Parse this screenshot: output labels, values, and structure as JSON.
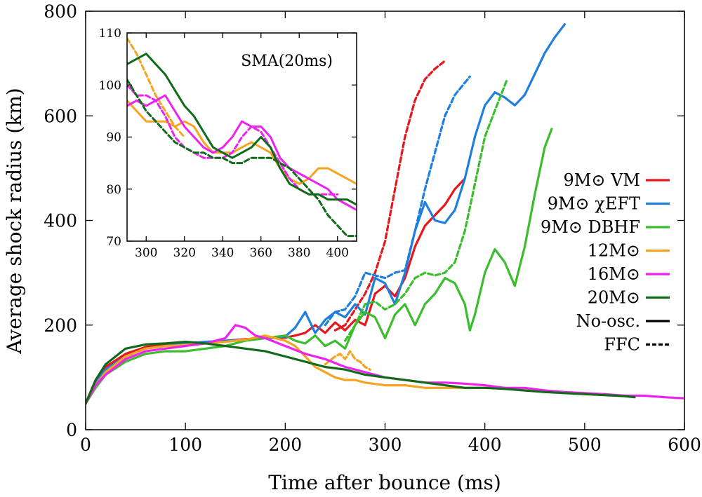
{
  "chart_data": [
    {
      "type": "line",
      "title": "",
      "xlabel": "Time after bounce (ms)",
      "ylabel": "Average shock radius (km)",
      "xlim": [
        0,
        600
      ],
      "ylim": [
        0,
        800
      ],
      "xticks": [
        0,
        100,
        200,
        300,
        400,
        500,
        600
      ],
      "yticks": [
        0,
        200,
        400,
        600,
        800
      ],
      "legend_position": "right",
      "legend": [
        {
          "label": "9M⊙ VM",
          "color": "#e8161b",
          "style": "solid"
        },
        {
          "label": "9M⊙ χEFT",
          "color": "#1e7fe0",
          "style": "solid"
        },
        {
          "label": "9M⊙ DBHF",
          "color": "#3cbd2e",
          "style": "solid"
        },
        {
          "label": "12M⊙",
          "color": "#f5a320",
          "style": "solid"
        },
        {
          "label": "16M⊙",
          "color": "#ee22ee",
          "style": "solid"
        },
        {
          "label": "20M⊙",
          "color": "#0f6b18",
          "style": "solid"
        },
        {
          "label": "No-osc.",
          "color": "#000000",
          "style": "solid"
        },
        {
          "label": "FFC",
          "color": "#000000",
          "style": "dashed"
        }
      ],
      "series": [
        {
          "name": "9M⊙ VM",
          "color": "#e8161b",
          "style": "solid",
          "x": [
            0,
            10,
            20,
            40,
            60,
            80,
            100,
            120,
            140,
            160,
            180,
            200,
            210,
            220,
            230,
            240,
            250,
            260,
            270,
            280,
            290,
            300,
            310,
            320,
            330,
            340,
            350,
            360,
            370,
            380
          ],
          "y": [
            50,
            95,
            120,
            145,
            158,
            163,
            165,
            167,
            170,
            173,
            175,
            176,
            180,
            185,
            200,
            185,
            205,
            190,
            210,
            200,
            260,
            275,
            255,
            290,
            350,
            390,
            410,
            430,
            460,
            480
          ]
        },
        {
          "name": "9M⊙ VM FFC",
          "color": "#e8161b",
          "style": "dashed",
          "x": [
            250,
            260,
            270,
            280,
            290,
            300,
            310,
            320,
            330,
            340,
            350,
            360
          ],
          "y": [
            190,
            200,
            230,
            260,
            300,
            360,
            460,
            560,
            630,
            670,
            690,
            705
          ]
        },
        {
          "name": "9M⊙ χEFT",
          "color": "#1e7fe0",
          "style": "solid",
          "x": [
            0,
            10,
            20,
            40,
            60,
            80,
            100,
            120,
            140,
            160,
            180,
            200,
            210,
            220,
            230,
            240,
            250,
            260,
            270,
            280,
            290,
            300,
            310,
            320,
            330,
            340,
            350,
            360,
            370,
            380,
            390,
            400,
            410,
            420,
            430,
            440,
            450,
            460,
            470,
            480
          ],
          "y": [
            50,
            90,
            115,
            140,
            155,
            160,
            165,
            168,
            170,
            172,
            175,
            178,
            195,
            225,
            185,
            210,
            225,
            215,
            240,
            220,
            290,
            280,
            240,
            300,
            380,
            435,
            400,
            395,
            420,
            480,
            560,
            620,
            645,
            635,
            620,
            640,
            680,
            720,
            750,
            775
          ]
        },
        {
          "name": "9M⊙ χEFT FFC",
          "color": "#1e7fe0",
          "style": "dashed",
          "x": [
            240,
            250,
            260,
            270,
            280,
            290,
            300,
            310,
            320,
            330,
            340,
            350,
            360,
            370,
            385
          ],
          "y": [
            200,
            225,
            230,
            255,
            300,
            295,
            290,
            300,
            305,
            380,
            460,
            530,
            600,
            640,
            675
          ]
        },
        {
          "name": "9M⊙ DBHF",
          "color": "#3cbd2e",
          "style": "solid",
          "x": [
            0,
            10,
            20,
            40,
            60,
            80,
            100,
            120,
            140,
            160,
            180,
            200,
            210,
            220,
            230,
            240,
            250,
            260,
            270,
            280,
            290,
            300,
            310,
            320,
            330,
            340,
            350,
            360,
            370,
            380,
            385,
            390,
            400,
            410,
            420,
            430,
            440,
            450,
            460,
            467
          ],
          "y": [
            50,
            80,
            105,
            130,
            145,
            150,
            150,
            155,
            160,
            170,
            175,
            180,
            170,
            165,
            180,
            160,
            170,
            155,
            200,
            225,
            215,
            175,
            220,
            240,
            200,
            240,
            260,
            290,
            280,
            240,
            190,
            220,
            300,
            345,
            320,
            275,
            350,
            450,
            540,
            575
          ]
        },
        {
          "name": "9M⊙ DBHF FFC",
          "color": "#3cbd2e",
          "style": "dashed",
          "x": [
            260,
            270,
            280,
            290,
            300,
            310,
            320,
            330,
            340,
            350,
            360,
            370,
            380,
            390,
            400,
            410,
            422
          ],
          "y": [
            170,
            200,
            240,
            245,
            230,
            240,
            260,
            290,
            300,
            295,
            300,
            320,
            380,
            470,
            560,
            610,
            668
          ]
        },
        {
          "name": "12M⊙",
          "color": "#f5a320",
          "style": "solid",
          "x": [
            0,
            10,
            20,
            40,
            60,
            80,
            100,
            120,
            140,
            160,
            180,
            200,
            210,
            220,
            230,
            240,
            250,
            260,
            270,
            280,
            300,
            320,
            340,
            360,
            380,
            400,
            420,
            440,
            460,
            480,
            500,
            520,
            540
          ],
          "y": [
            50,
            85,
            110,
            140,
            155,
            160,
            162,
            165,
            168,
            172,
            180,
            170,
            160,
            140,
            120,
            110,
            100,
            95,
            95,
            90,
            85,
            85,
            80,
            80,
            80,
            80,
            80,
            75,
            75,
            70,
            70,
            68,
            65
          ]
        },
        {
          "name": "12M⊙ FFC",
          "color": "#f5a320",
          "style": "dashed",
          "x": [
            240,
            250,
            255,
            260,
            265,
            270,
            275,
            280,
            285
          ],
          "y": [
            125,
            140,
            145,
            135,
            150,
            135,
            130,
            120,
            115
          ]
        },
        {
          "name": "16M⊙",
          "color": "#ee22ee",
          "style": "solid",
          "x": [
            0,
            10,
            20,
            40,
            60,
            80,
            100,
            120,
            140,
            150,
            160,
            170,
            180,
            200,
            220,
            240,
            260,
            280,
            300,
            320,
            340,
            360,
            380,
            400,
            420,
            440,
            460,
            480,
            500,
            520,
            540,
            560,
            580,
            600
          ],
          "y": [
            50,
            85,
            105,
            135,
            150,
            155,
            160,
            165,
            175,
            200,
            195,
            180,
            175,
            160,
            145,
            135,
            120,
            110,
            100,
            95,
            90,
            90,
            88,
            85,
            80,
            80,
            75,
            72,
            70,
            68,
            65,
            65,
            62,
            60
          ]
        },
        {
          "name": "20M⊙",
          "color": "#0f6b18",
          "style": "solid",
          "x": [
            0,
            10,
            20,
            40,
            60,
            80,
            100,
            120,
            140,
            160,
            180,
            200,
            220,
            240,
            260,
            280,
            300,
            320,
            340,
            360,
            380,
            400,
            420,
            440,
            460,
            480,
            500,
            520,
            540,
            550
          ],
          "y": [
            50,
            95,
            125,
            155,
            163,
            165,
            168,
            165,
            160,
            155,
            150,
            140,
            130,
            120,
            115,
            105,
            100,
            95,
            90,
            85,
            80,
            80,
            78,
            75,
            72,
            70,
            68,
            66,
            64,
            62
          ]
        }
      ]
    },
    {
      "type": "line",
      "title": "SMA(20ms)",
      "xlabel": "",
      "ylabel": "",
      "xlim": [
        290,
        410
      ],
      "ylim": [
        70,
        110
      ],
      "xticks": [
        300,
        320,
        340,
        360,
        380,
        400
      ],
      "yticks": [
        70,
        80,
        90,
        100,
        110
      ],
      "series": [
        {
          "name": "12M⊙",
          "color": "#f5a320",
          "style": "solid",
          "x": [
            290,
            295,
            300,
            305,
            310,
            315,
            320,
            325,
            330,
            335,
            340,
            345,
            350,
            355,
            360,
            365,
            370,
            375,
            380,
            385,
            390,
            395,
            400,
            405,
            410
          ],
          "y": [
            97,
            95,
            93,
            93,
            93,
            92,
            93,
            92,
            89,
            87,
            87,
            87,
            88,
            89,
            88,
            87,
            84,
            82,
            81,
            82,
            84,
            84,
            83,
            82,
            81
          ]
        },
        {
          "name": "12M⊙ FFC",
          "color": "#f5a320",
          "style": "dashed",
          "x": [
            290,
            295,
            300,
            305,
            310,
            315,
            320
          ],
          "y": [
            109,
            106,
            102,
            98,
            95,
            92,
            90
          ]
        },
        {
          "name": "16M⊙",
          "color": "#ee22ee",
          "style": "solid",
          "x": [
            290,
            295,
            300,
            305,
            310,
            315,
            320,
            325,
            330,
            335,
            340,
            345,
            350,
            355,
            360,
            365,
            370,
            375,
            380,
            385,
            390,
            395,
            400,
            405,
            410
          ],
          "y": [
            96,
            97,
            96,
            97,
            98,
            95,
            92,
            90,
            88,
            87,
            88,
            90,
            93,
            92,
            92,
            90,
            86,
            84,
            83,
            82,
            81,
            80,
            78,
            77,
            76
          ]
        },
        {
          "name": "16M⊙ FFC",
          "color": "#ee22ee",
          "style": "dashed",
          "x": [
            290,
            295,
            300,
            305,
            310,
            315,
            320,
            325,
            330,
            335,
            340,
            345,
            350,
            355,
            360,
            365,
            370,
            375,
            380,
            385,
            390,
            395,
            400
          ],
          "y": [
            100,
            98,
            98,
            97,
            94,
            90,
            88,
            87,
            86,
            86,
            86,
            87,
            90,
            92,
            91,
            88,
            85,
            82,
            80,
            79,
            79,
            79,
            79
          ]
        },
        {
          "name": "20M⊙",
          "color": "#0f6b18",
          "style": "solid",
          "x": [
            290,
            295,
            300,
            305,
            310,
            315,
            320,
            325,
            330,
            335,
            340,
            345,
            350,
            355,
            360,
            365,
            370,
            375,
            380,
            385,
            390,
            395,
            400,
            405,
            410
          ],
          "y": [
            104,
            105,
            106,
            104,
            102,
            99,
            96,
            94,
            91,
            88,
            87,
            86,
            87,
            88,
            90,
            88,
            84,
            81,
            80,
            79,
            79,
            78,
            78,
            78,
            77
          ]
        },
        {
          "name": "20M⊙ FFC",
          "color": "#0f6b18",
          "style": "dashed",
          "x": [
            290,
            295,
            300,
            305,
            310,
            315,
            320,
            325,
            330,
            335,
            340,
            345,
            350,
            355,
            360,
            365,
            370,
            375,
            380,
            385,
            390,
            395,
            400,
            405,
            410
          ],
          "y": [
            101,
            98,
            95,
            93,
            91,
            89,
            88,
            87,
            87,
            86,
            86,
            85,
            85,
            86,
            86,
            86,
            85,
            84,
            82,
            80,
            78,
            75,
            73,
            71,
            71
          ]
        }
      ]
    }
  ]
}
